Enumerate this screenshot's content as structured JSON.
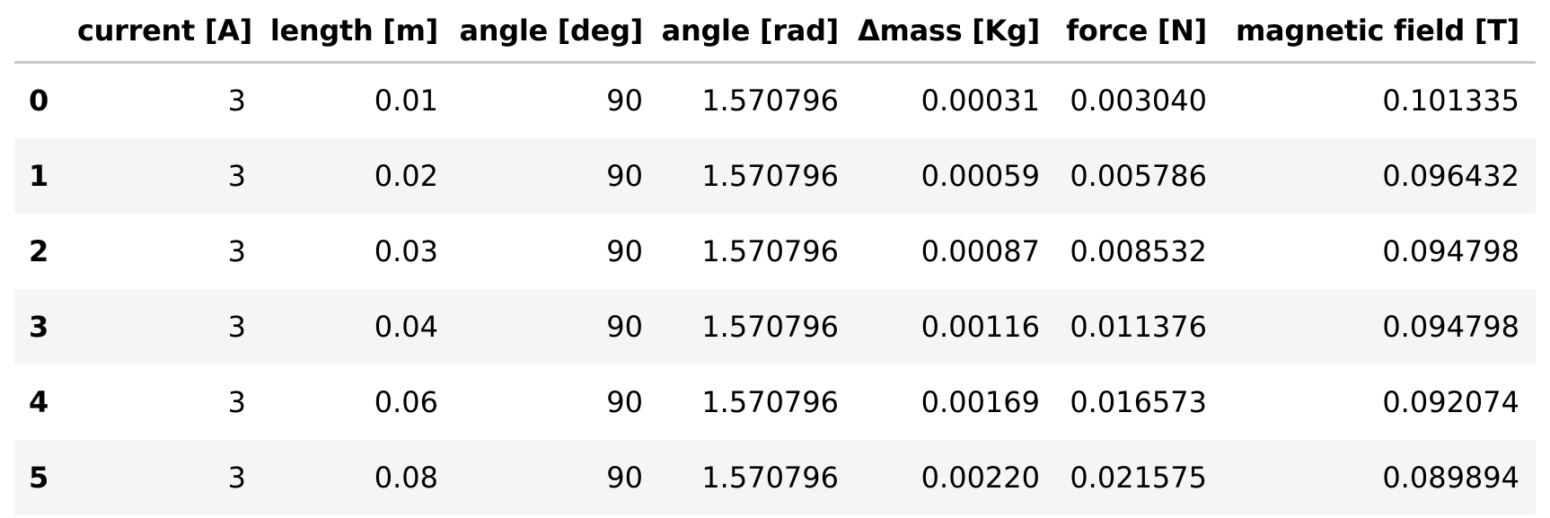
{
  "table": {
    "columns": [
      "",
      "current [A]",
      "length [m]",
      "angle [deg]",
      "angle [rad]",
      "Δmass [Kg]",
      "force [N]",
      "magnetic field [T]"
    ],
    "rows": [
      {
        "index": "0",
        "cells": [
          "3",
          "0.01",
          "90",
          "1.570796",
          "0.00031",
          "0.003040",
          "0.101335"
        ]
      },
      {
        "index": "1",
        "cells": [
          "3",
          "0.02",
          "90",
          "1.570796",
          "0.00059",
          "0.005786",
          "0.096432"
        ]
      },
      {
        "index": "2",
        "cells": [
          "3",
          "0.03",
          "90",
          "1.570796",
          "0.00087",
          "0.008532",
          "0.094798"
        ]
      },
      {
        "index": "3",
        "cells": [
          "3",
          "0.04",
          "90",
          "1.570796",
          "0.00116",
          "0.011376",
          "0.094798"
        ]
      },
      {
        "index": "4",
        "cells": [
          "3",
          "0.06",
          "90",
          "1.570796",
          "0.00169",
          "0.016573",
          "0.092074"
        ]
      },
      {
        "index": "5",
        "cells": [
          "3",
          "0.08",
          "90",
          "1.570796",
          "0.00220",
          "0.021575",
          "0.089894"
        ]
      }
    ]
  },
  "colors": {
    "header_rule": "#c8c8c8",
    "stripe": "#f5f5f5",
    "text": "#000000"
  }
}
